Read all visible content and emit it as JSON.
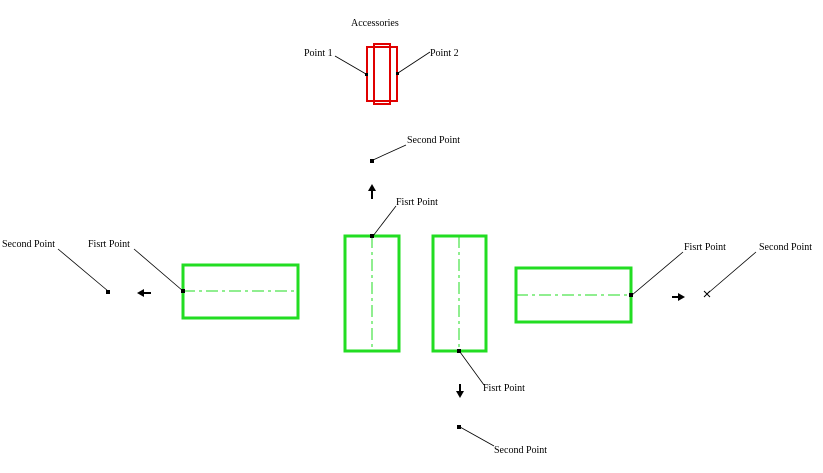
{
  "title": "Accessories",
  "accessory": {
    "point1_label": "Point 1",
    "point2_label": "Point 2"
  },
  "labels": {
    "top_second": "Second Point",
    "top_first": "Fisrt Point",
    "left_second": "Second Point",
    "left_first": "Fisrt Point",
    "right_first": "Fisrt Point",
    "right_second": "Second Point",
    "bottom_first": "Fisrt Point",
    "bottom_second": "Second Point"
  },
  "colors": {
    "accessory": "#e00000",
    "part": "#22dd22",
    "centerline": "#22dd22",
    "annotation": "#000000"
  }
}
